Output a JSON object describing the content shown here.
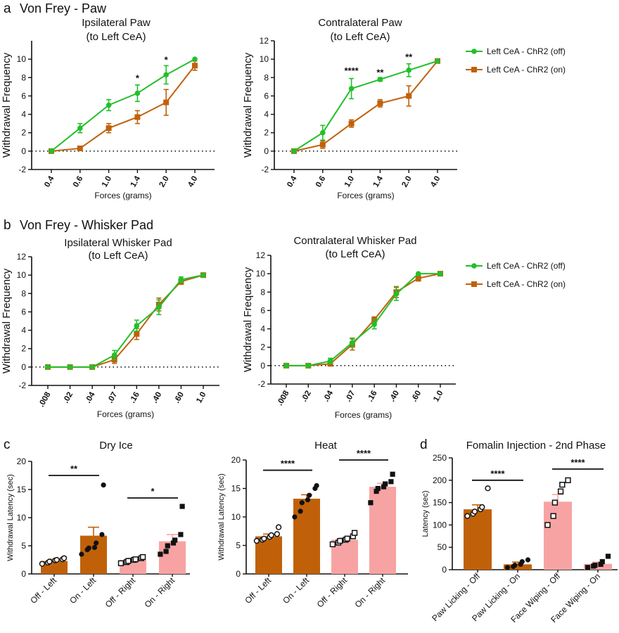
{
  "colors": {
    "green": "#22c02a",
    "orange": "#c0610a",
    "pink": "#f7a3a3",
    "axis": "#111111"
  },
  "panels": {
    "a": {
      "letter": "a",
      "title": "Von Frey - Paw"
    },
    "b": {
      "letter": "b",
      "title": "Von Frey - Whisker Pad"
    },
    "c": {
      "letter": "c"
    },
    "d": {
      "letter": "d"
    }
  },
  "legend": {
    "off": "Left CeA - ChR2 (off)",
    "on": "Left CeA - ChR2 (on)"
  },
  "chart_data": [
    {
      "id": "a1",
      "type": "line",
      "title": [
        "Ipsilateral Paw",
        "(to Left CeA)"
      ],
      "xlabel": "Forces (grams)",
      "ylabel": "Withdrawal Frequency",
      "categories": [
        "0.4",
        "0.6",
        "1.0",
        "1.4",
        "2.0",
        "4.0"
      ],
      "ylim": [
        -2,
        12
      ],
      "yticks": [
        "-2",
        "0",
        "2",
        "4",
        "6",
        "8",
        "10"
      ],
      "series": [
        {
          "name": "Left CeA - ChR2 (off)",
          "color": "green",
          "values": [
            0,
            2.5,
            5.0,
            6.3,
            8.3,
            10.0
          ],
          "err": [
            0,
            0.5,
            0.6,
            0.9,
            1.0,
            0
          ]
        },
        {
          "name": "Left CeA - ChR2 (on)",
          "color": "orange",
          "values": [
            0,
            0.3,
            2.5,
            3.7,
            5.3,
            9.3
          ],
          "err": [
            0,
            0.2,
            0.5,
            0.7,
            1.4,
            0.5
          ]
        }
      ],
      "annotations": [
        {
          "cat": 3,
          "y": 7.6,
          "text": "*"
        },
        {
          "cat": 4,
          "y": 9.6,
          "text": "*"
        }
      ]
    },
    {
      "id": "a2",
      "type": "line",
      "title": [
        "Contralateral Paw",
        "(to Left CeA)"
      ],
      "xlabel": "Forces (grams)",
      "ylabel": "Withdrawal Frequency",
      "categories": [
        "0.4",
        "0.6",
        "1.0",
        "1.4",
        "2.0",
        "4.0"
      ],
      "ylim": [
        -2,
        12
      ],
      "yticks": [
        "-2",
        "0",
        "2",
        "4",
        "6",
        "8",
        "10",
        "12"
      ],
      "series": [
        {
          "name": "Left CeA - ChR2 (off)",
          "color": "green",
          "values": [
            0,
            2.0,
            6.8,
            7.8,
            8.8,
            9.8
          ],
          "err": [
            0,
            0.8,
            1.1,
            0.2,
            0.7,
            0
          ]
        },
        {
          "name": "Left CeA - ChR2 (on)",
          "color": "orange",
          "values": [
            0,
            0.7,
            3.0,
            5.2,
            6.0,
            9.8
          ],
          "err": [
            0,
            0.4,
            0.4,
            0.4,
            1.1,
            0
          ]
        }
      ],
      "annotations": [
        {
          "cat": 2,
          "y": 8.4,
          "text": "****"
        },
        {
          "cat": 3,
          "y": 8.2,
          "text": "**"
        },
        {
          "cat": 4,
          "y": 9.9,
          "text": "**"
        }
      ]
    },
    {
      "id": "b1",
      "type": "line",
      "title": [
        "Ipsilateral Whisker Pad",
        "(to Left CeA)"
      ],
      "xlabel": "Forces (grams)",
      "ylabel": "Withdrawal Frequency",
      "categories": [
        ".008",
        ".02",
        ".04",
        ".07",
        ".16",
        ".40",
        ".60",
        "1.0"
      ],
      "ylim": [
        -2,
        12
      ],
      "yticks": [
        "-2",
        "0",
        "2",
        "4",
        "6",
        "8",
        "10",
        "12"
      ],
      "series": [
        {
          "name": "Left CeA - ChR2 (off)",
          "color": "green",
          "values": [
            0,
            0,
            0,
            1.3,
            4.5,
            6.5,
            9.5,
            10.0
          ],
          "err": [
            0,
            0,
            0,
            0.5,
            0.6,
            0.8,
            0.3,
            0
          ]
        },
        {
          "name": "Left CeA - ChR2 (on)",
          "color": "orange",
          "values": [
            0,
            0,
            0,
            0.8,
            3.6,
            6.8,
            9.3,
            10.0
          ],
          "err": [
            0,
            0,
            0,
            0.4,
            0.6,
            0.7,
            0.3,
            0
          ]
        }
      ],
      "annotations": []
    },
    {
      "id": "b2",
      "type": "line",
      "title": [
        "Contralateral Whisker Pad",
        "(to Left CeA)"
      ],
      "xlabel": "Forces (grams)",
      "ylabel": "Withdrawal Frequency",
      "categories": [
        ".008",
        ".02",
        ".04",
        ".07",
        ".16",
        ".40",
        ".60",
        "1.0"
      ],
      "ylim": [
        -2,
        12
      ],
      "yticks": [
        "-2",
        "0",
        "2",
        "4",
        "6",
        "8",
        "10",
        "12"
      ],
      "series": [
        {
          "name": "Left CeA - ChR2 (off)",
          "color": "green",
          "values": [
            0,
            0,
            0.5,
            2.5,
            4.5,
            7.8,
            10.0,
            10.0
          ],
          "err": [
            0,
            0,
            0.3,
            0.5,
            0.5,
            0.7,
            0,
            0
          ]
        },
        {
          "name": "Left CeA - ChR2 (on)",
          "color": "orange",
          "values": [
            0,
            0,
            0.2,
            2.3,
            5.0,
            8.0,
            9.5,
            10.0
          ],
          "err": [
            0,
            0,
            0.2,
            0.6,
            0.3,
            0.6,
            0.3,
            0
          ]
        }
      ],
      "annotations": []
    },
    {
      "id": "c1",
      "type": "bar",
      "title": "Dry Ice",
      "ylabel": "Withdrawal Latency (sec)",
      "categories": [
        "Off - Left",
        "On - Left",
        "Off - Right",
        "On - Right"
      ],
      "ylim": [
        0,
        20
      ],
      "yticks": [
        "0",
        "5",
        "10",
        "15",
        "20"
      ],
      "bars": [
        {
          "value": 2.3,
          "err": 0.3,
          "color": "orange",
          "marker": "circle-open",
          "points": [
            1.8,
            2.0,
            2.2,
            2.4,
            2.5,
            2.6,
            2.8
          ]
        },
        {
          "value": 6.8,
          "err": 1.5,
          "color": "orange",
          "marker": "circle-filled",
          "points": [
            3.5,
            4.3,
            4.6,
            4.7,
            5.5,
            7.0,
            15.8
          ]
        },
        {
          "value": 2.5,
          "err": 0.3,
          "color": "pink",
          "marker": "square-open",
          "points": [
            1.9,
            2.1,
            2.3,
            2.5,
            2.6,
            2.8,
            3.0
          ]
        },
        {
          "value": 5.8,
          "err": 1.2,
          "color": "pink",
          "marker": "square-filled",
          "points": [
            3.5,
            4.0,
            5.0,
            5.5,
            6.0,
            7.0,
            12.0
          ]
        }
      ],
      "significance": [
        {
          "from": 0,
          "to": 1,
          "y": 17.5,
          "text": "**"
        },
        {
          "from": 2,
          "to": 3,
          "y": 13.5,
          "text": "*"
        }
      ]
    },
    {
      "id": "c2",
      "type": "bar",
      "title": "Heat",
      "ylabel": "Withdrawal Latency (sec)",
      "categories": [
        "Off - Left",
        "On - Left",
        "Off - Right",
        "On - Right"
      ],
      "ylim": [
        0,
        20
      ],
      "yticks": [
        "0",
        "5",
        "10",
        "15",
        "20"
      ],
      "bars": [
        {
          "value": 6.6,
          "err": 0.4,
          "color": "orange",
          "marker": "circle-open",
          "points": [
            5.8,
            6.0,
            6.2,
            6.5,
            6.8,
            7.0,
            8.2
          ]
        },
        {
          "value": 13.2,
          "err": 0.7,
          "color": "orange",
          "marker": "circle-filled",
          "points": [
            10.0,
            11.0,
            12.5,
            13.0,
            13.8,
            15.0,
            15.5
          ]
        },
        {
          "value": 6.0,
          "err": 0.3,
          "color": "pink",
          "marker": "square-open",
          "points": [
            5.2,
            5.5,
            5.8,
            6.0,
            6.2,
            6.6,
            7.2
          ]
        },
        {
          "value": 15.3,
          "err": 0.6,
          "color": "pink",
          "marker": "square-filled",
          "points": [
            12.5,
            14.5,
            15.0,
            15.3,
            15.8,
            16.2,
            17.5
          ]
        }
      ],
      "significance": [
        {
          "from": 0,
          "to": 1,
          "y": 18.2,
          "text": "****"
        },
        {
          "from": 2,
          "to": 3,
          "y": 20.0,
          "text": "****"
        }
      ]
    },
    {
      "id": "d",
      "type": "bar",
      "title": "Fomalin Injection - 2nd Phase",
      "ylabel": "Latency (sec)",
      "categories": [
        "Paw Licking - Off",
        "Paw Licking - On",
        "Face Wiping - Off",
        "Face Wiping - On"
      ],
      "ylim": [
        0,
        250
      ],
      "yticks": [
        "0",
        "50",
        "100",
        "150",
        "200",
        "250"
      ],
      "bars": [
        {
          "value": 135,
          "err": 10,
          "color": "orange",
          "marker": "circle-open",
          "points": [
            120,
            125,
            130,
            135,
            140,
            182
          ]
        },
        {
          "value": 12,
          "err": 5,
          "color": "orange",
          "marker": "circle-filled",
          "points": [
            5,
            7,
            10,
            12,
            18,
            22
          ]
        },
        {
          "value": 152,
          "err": 16,
          "color": "pink",
          "marker": "square-open",
          "points": [
            100,
            120,
            150,
            175,
            190,
            200
          ]
        },
        {
          "value": 13,
          "err": 4,
          "color": "pink",
          "marker": "square-filled",
          "points": [
            5,
            8,
            10,
            12,
            18,
            30
          ]
        }
      ],
      "significance": [
        {
          "from": 0,
          "to": 1,
          "y": 200,
          "text": "****"
        },
        {
          "from": 2,
          "to": 3,
          "y": 225,
          "text": "****"
        }
      ]
    }
  ]
}
